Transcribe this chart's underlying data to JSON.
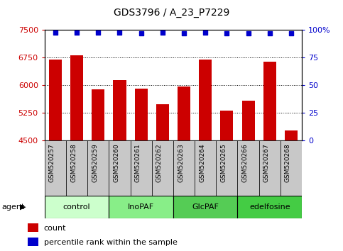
{
  "title": "GDS3796 / A_23_P7229",
  "samples": [
    "GSM520257",
    "GSM520258",
    "GSM520259",
    "GSM520260",
    "GSM520261",
    "GSM520262",
    "GSM520263",
    "GSM520264",
    "GSM520265",
    "GSM520266",
    "GSM520267",
    "GSM520268"
  ],
  "bar_values": [
    6700,
    6820,
    5900,
    6150,
    5920,
    5480,
    5970,
    6700,
    5320,
    5580,
    6650,
    4780
  ],
  "percentile_values": [
    98,
    98,
    98,
    98,
    97,
    98,
    97,
    98,
    97,
    97,
    97,
    97
  ],
  "bar_color": "#cc0000",
  "dot_color": "#0000cc",
  "ylim_left": [
    4500,
    7500
  ],
  "ylim_right": [
    0,
    100
  ],
  "yticks_left": [
    4500,
    5250,
    6000,
    6750,
    7500
  ],
  "yticks_right": [
    0,
    25,
    50,
    75,
    100
  ],
  "ytick_labels_right": [
    "0",
    "25",
    "50",
    "75",
    "100%"
  ],
  "groups": [
    {
      "label": "control",
      "start": 0,
      "end": 3,
      "color": "#ccffcc"
    },
    {
      "label": "InoPAF",
      "start": 3,
      "end": 6,
      "color": "#88ee88"
    },
    {
      "label": "GlcPAF",
      "start": 6,
      "end": 9,
      "color": "#55cc55"
    },
    {
      "label": "edelfosine",
      "start": 9,
      "end": 12,
      "color": "#44cc44"
    }
  ],
  "agent_label": "agent",
  "legend_count_label": "count",
  "legend_pct_label": "percentile rank within the sample",
  "background_color": "#ffffff",
  "tick_bg_color": "#c8c8c8",
  "plot_border_color": "#000000"
}
